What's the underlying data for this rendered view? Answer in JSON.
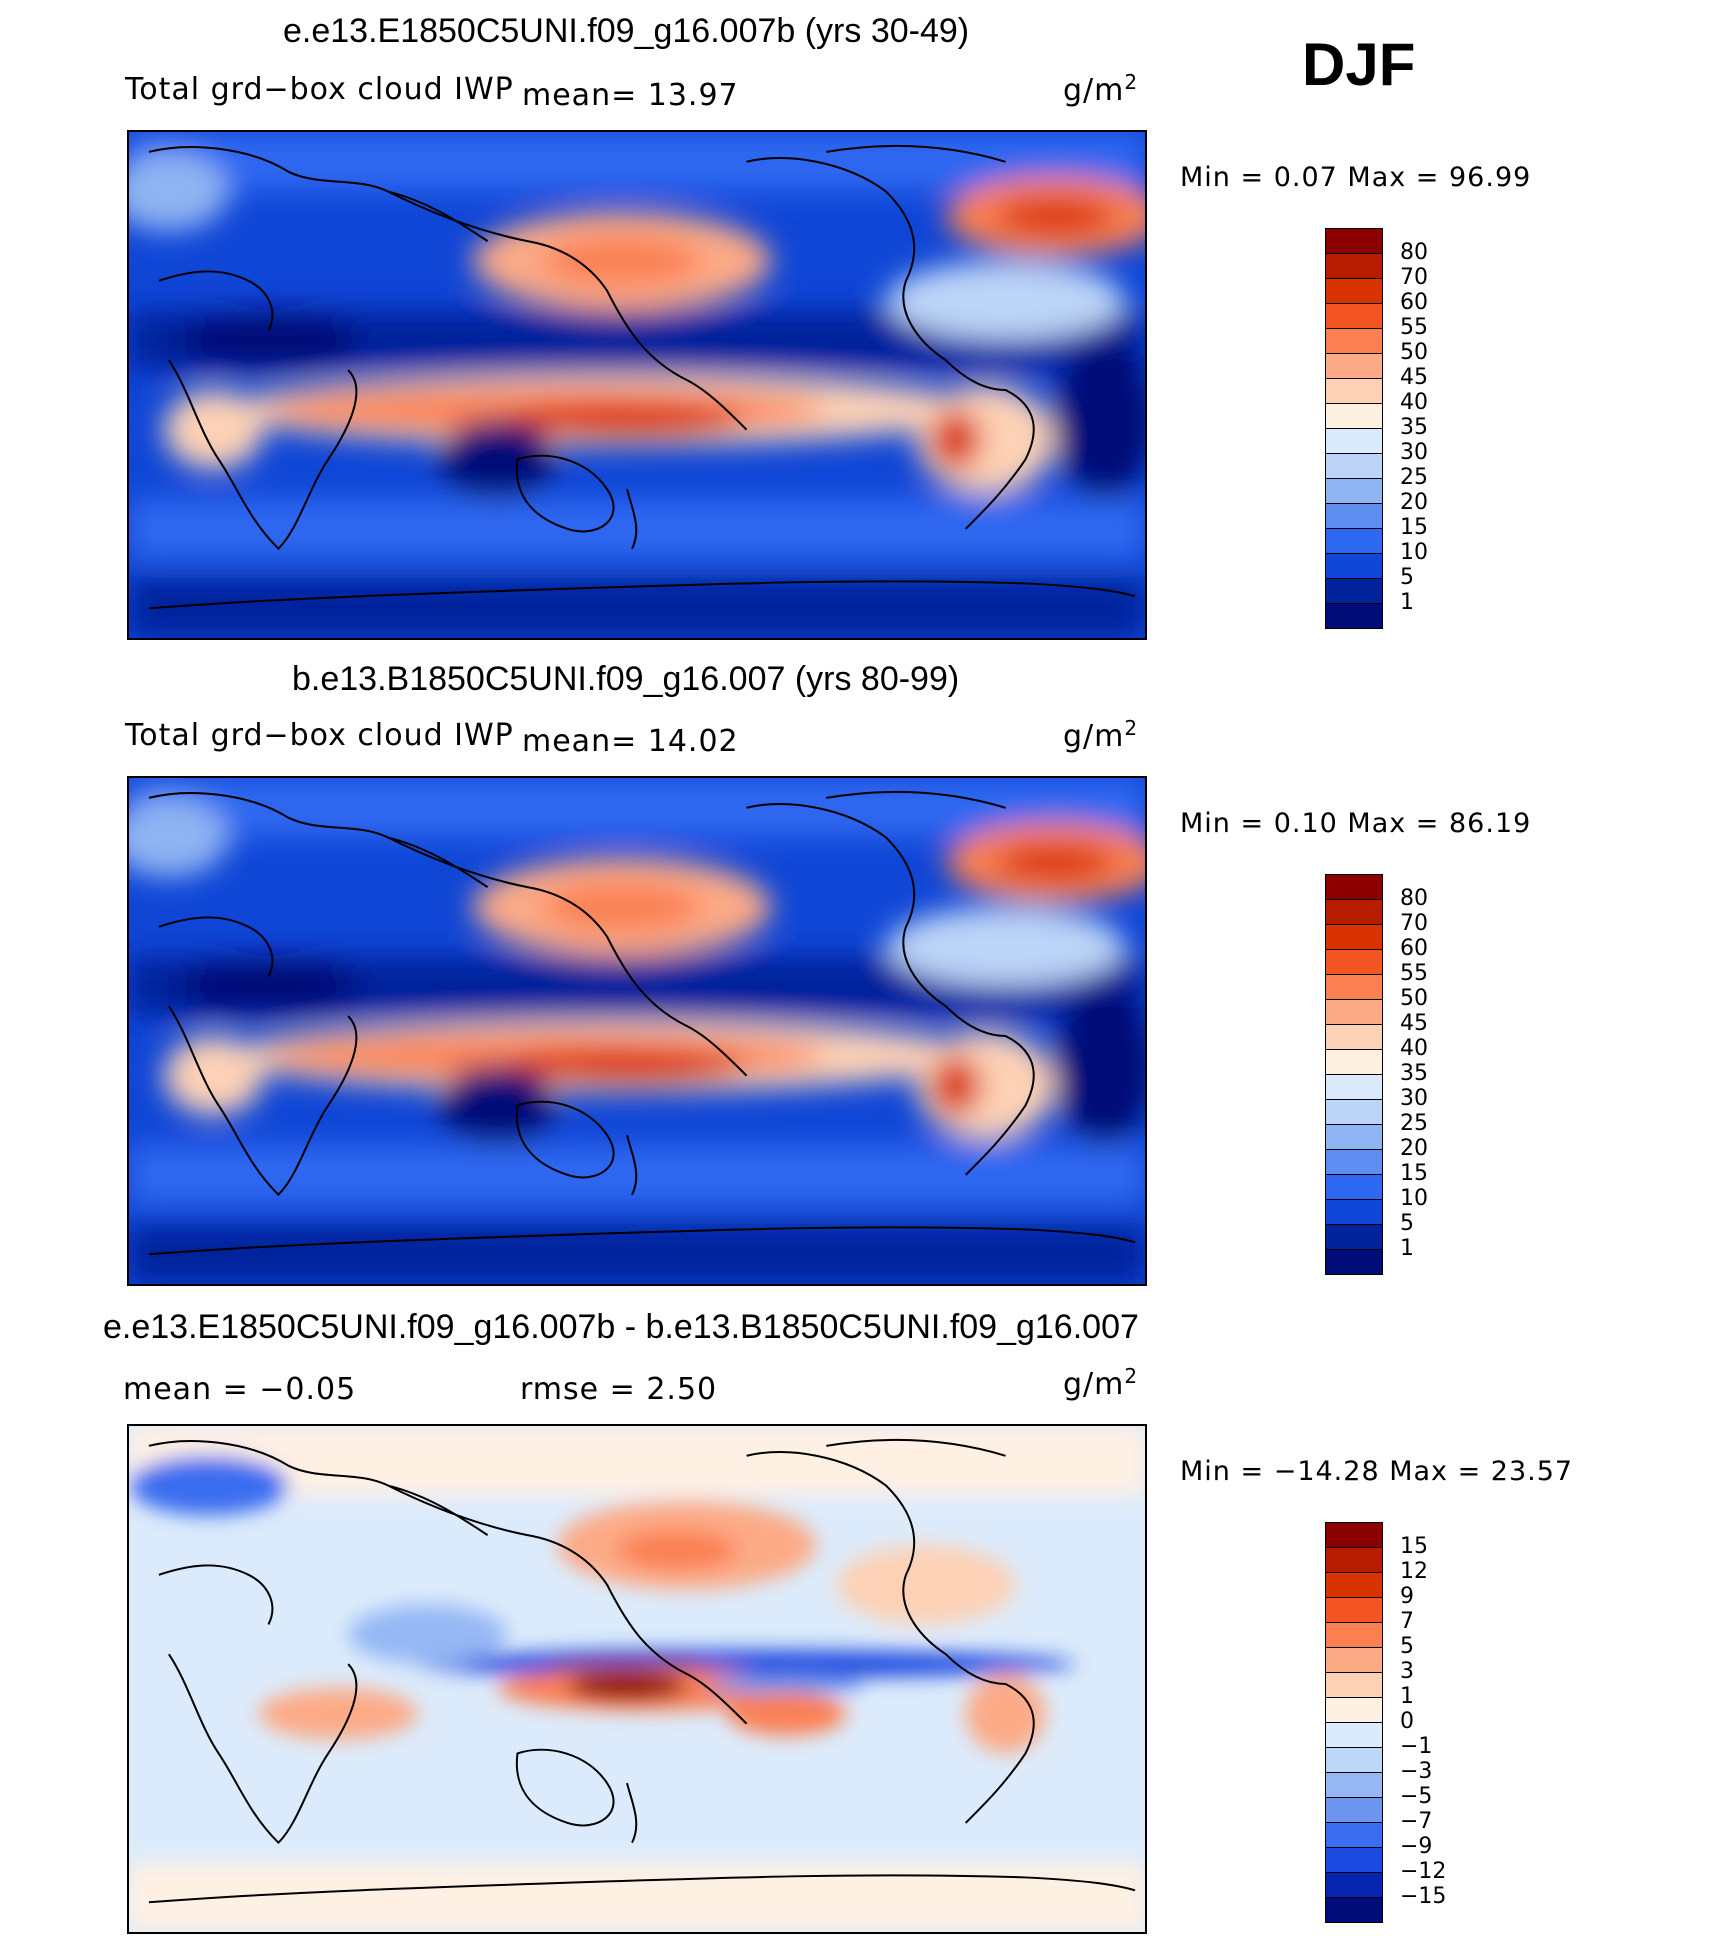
{
  "season": "DJF",
  "units_base": "g/m",
  "units_exp": "2",
  "panels": [
    {
      "title": "e.e13.E1850C5UNI.f09_g16.007b (yrs 30-49)",
      "variable": "Total grd−box cloud IWP",
      "stat1": "mean=   13.97",
      "stat2": "",
      "minmax": "Min =     0.07  Max =    96.99",
      "map_type": "field",
      "colorbar": [
        "80",
        "70",
        "60",
        "55",
        "50",
        "45",
        "40",
        "35",
        "30",
        "25",
        "20",
        "15",
        "10",
        "5",
        "1"
      ]
    },
    {
      "title": "b.e13.B1850C5UNI.f09_g16.007 (yrs 80-99)",
      "variable": "Total grd−box cloud IWP",
      "stat1": "mean=   14.02",
      "stat2": "",
      "minmax": "Min =     0.10  Max =    86.19",
      "map_type": "field",
      "colorbar": [
        "80",
        "70",
        "60",
        "55",
        "50",
        "45",
        "40",
        "35",
        "30",
        "25",
        "20",
        "15",
        "10",
        "5",
        "1"
      ]
    },
    {
      "title": "e.e13.E1850C5UNI.f09_g16.007b - b.e13.B1850C5UNI.f09_g16.007",
      "variable": "",
      "stat1": "mean =   −0.05",
      "stat2": "rmse =     2.50",
      "minmax": "Min =  −14.28  Max =    23.57",
      "map_type": "diff",
      "colorbar": [
        "15",
        "12",
        "9",
        "7",
        "5",
        "3",
        "1",
        "0",
        "−1",
        "−3",
        "−5",
        "−7",
        "−9",
        "−12",
        "−15"
      ]
    }
  ],
  "colors": {
    "field_scale": [
      "#8c0000",
      "#b51c00",
      "#d93300",
      "#f25422",
      "#fa8052",
      "#fcaa86",
      "#fdd1b5",
      "#fdf0e0",
      "#dbeafa",
      "#bcd4f7",
      "#8fb4f2",
      "#5f8ef0",
      "#2f68f0",
      "#0f46d6",
      "#00239c",
      "#000c78"
    ],
    "diff_scale": [
      "#8c0000",
      "#b51c00",
      "#d93300",
      "#f25422",
      "#fa8052",
      "#fcaa86",
      "#fdd1b5",
      "#fff0e4",
      "#dcebfb",
      "#bed7f8",
      "#95b8f4",
      "#6b95ef",
      "#3a6df0",
      "#1a4ae0",
      "#0524b0",
      "#000c78"
    ]
  }
}
